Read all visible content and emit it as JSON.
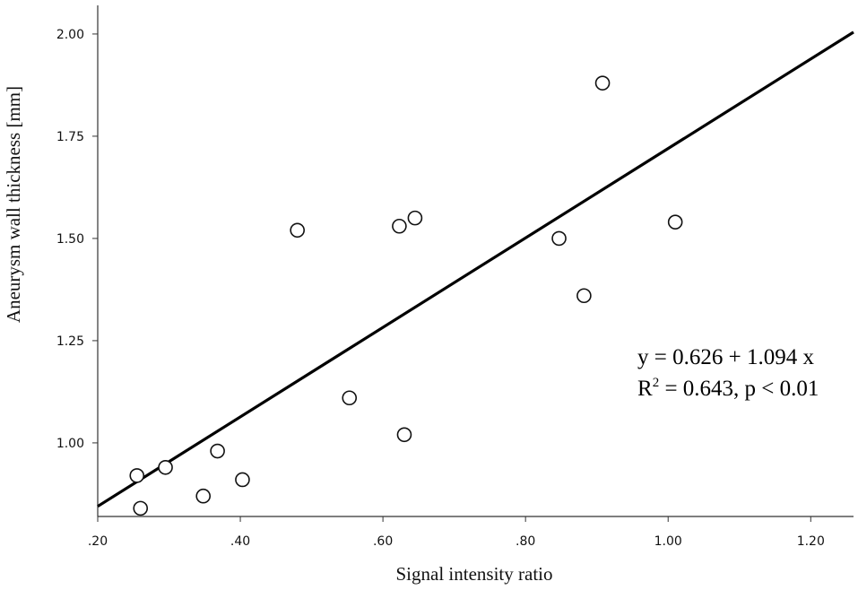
{
  "chart_data": {
    "type": "scatter",
    "xlabel": "Signal intensity ratio",
    "ylabel": "Aneurysm wall thickness [mm]",
    "xlim": [
      0.2,
      1.26
    ],
    "ylim": [
      0.82,
      2.07
    ],
    "x_ticks": [
      ".20",
      ".40",
      ".60",
      ".80",
      "1.00",
      "1.20"
    ],
    "x_tick_values": [
      0.2,
      0.4,
      0.6,
      0.8,
      1.0,
      1.2
    ],
    "y_ticks": [
      "1.00",
      "1.25",
      "1.50",
      "1.75",
      "2.00"
    ],
    "y_tick_values": [
      1.0,
      1.25,
      1.5,
      1.75,
      2.0
    ],
    "points": [
      {
        "x": 0.255,
        "y": 0.92
      },
      {
        "x": 0.26,
        "y": 0.84
      },
      {
        "x": 0.295,
        "y": 0.94
      },
      {
        "x": 0.348,
        "y": 0.87
      },
      {
        "x": 0.368,
        "y": 0.98
      },
      {
        "x": 0.403,
        "y": 0.91
      },
      {
        "x": 0.48,
        "y": 1.52
      },
      {
        "x": 0.553,
        "y": 1.11
      },
      {
        "x": 0.623,
        "y": 1.53
      },
      {
        "x": 0.63,
        "y": 1.02
      },
      {
        "x": 0.645,
        "y": 1.55
      },
      {
        "x": 0.847,
        "y": 1.5
      },
      {
        "x": 0.882,
        "y": 1.36
      },
      {
        "x": 0.908,
        "y": 1.88
      },
      {
        "x": 1.01,
        "y": 1.54
      }
    ],
    "fit": {
      "intercept": 0.626,
      "slope": 1.094
    },
    "annotation": {
      "line1": "y = 0.626 + 1.094 x",
      "line2_prefix": "R",
      "line2_sup": "2",
      "line2_rest": " = 0.643, p < 0.01"
    },
    "grid": false
  }
}
